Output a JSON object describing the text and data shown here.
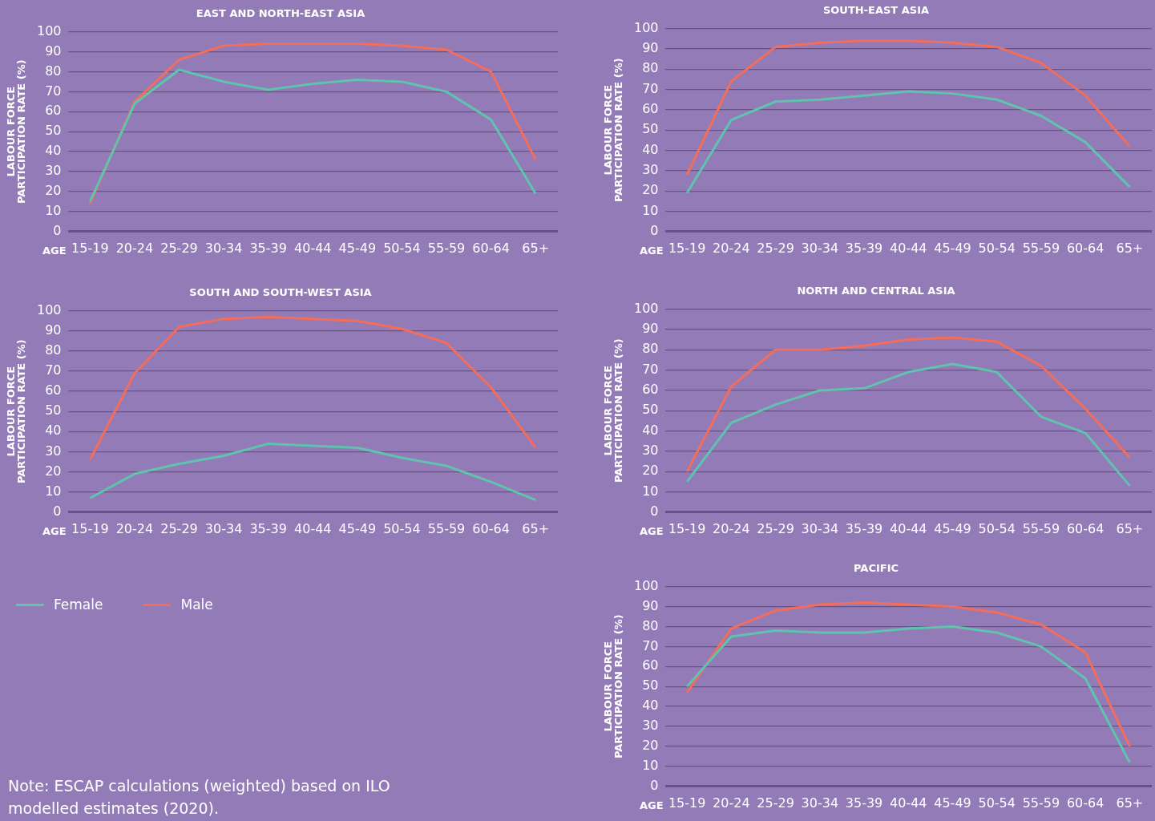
{
  "chart_data": [
    {
      "type": "line",
      "title": "EAST AND NORTH-EAST ASIA",
      "xlabel": "AGE",
      "ylabel": "LABOUR FORCE PARTICIPATION RATE (%)",
      "categories": [
        "15-19",
        "20-24",
        "25-29",
        "30-34",
        "35-39",
        "40-44",
        "45-49",
        "50-54",
        "55-59",
        "60-64",
        "65+"
      ],
      "ylim": [
        0,
        100
      ],
      "yticks": [
        0,
        10,
        20,
        30,
        40,
        50,
        60,
        70,
        80,
        90,
        100
      ],
      "grid": "y",
      "legend": "bottom",
      "marker": "none",
      "series": [
        {
          "name": "Female",
          "color": "#5fc3ad",
          "values": [
            15,
            64,
            81,
            75,
            71,
            74,
            76,
            75,
            70,
            56,
            19
          ]
        },
        {
          "name": "Male",
          "color": "#f26d5b",
          "values": [
            14,
            65,
            86,
            93,
            94,
            94,
            94,
            93,
            91,
            80,
            36
          ]
        }
      ]
    },
    {
      "type": "line",
      "title": "SOUTH-EAST ASIA",
      "xlabel": "AGE",
      "ylabel": "LABOUR FORCE PARTICIPATION RATE (%)",
      "categories": [
        "15-19",
        "20-24",
        "25-29",
        "30-34",
        "35-39",
        "40-44",
        "45-49",
        "50-54",
        "55-59",
        "60-64",
        "65+"
      ],
      "ylim": [
        0,
        100
      ],
      "yticks": [
        0,
        10,
        20,
        30,
        40,
        50,
        60,
        70,
        80,
        90,
        100
      ],
      "grid": "y",
      "marker": "none",
      "series": [
        {
          "color": "#5fc3ad",
          "values": [
            19,
            55,
            64,
            65,
            67,
            69,
            68,
            65,
            57,
            44,
            22
          ]
        },
        {
          "color": "#f26d5b",
          "values": [
            28,
            74,
            91,
            93,
            94,
            94,
            93,
            91,
            83,
            67,
            42
          ]
        }
      ]
    },
    {
      "type": "line",
      "title": "SOUTH AND SOUTH-WEST ASIA",
      "xlabel": "AGE",
      "ylabel": "LABOUR FORCE PARTICIPATION RATE (%)",
      "categories": [
        "15-19",
        "20-24",
        "25-29",
        "30-34",
        "35-39",
        "40-44",
        "45-49",
        "50-54",
        "55-59",
        "60-64",
        "65+"
      ],
      "ylim": [
        0,
        100
      ],
      "yticks": [
        0,
        10,
        20,
        30,
        40,
        50,
        60,
        70,
        80,
        90,
        100
      ],
      "grid": "y",
      "marker": "none",
      "annotations": [
        "Note: ESCAP calculations (weighted) based on ILO modelled estimates (2020)."
      ],
      "series": [
        {
          "color": "#5fc3ad",
          "values": [
            7,
            19,
            24,
            28,
            34,
            33,
            32,
            27,
            23,
            15,
            6
          ]
        },
        {
          "color": "#f26d5b",
          "values": [
            26,
            69,
            92,
            96,
            97,
            96,
            95,
            91,
            84,
            62,
            32
          ]
        }
      ]
    },
    {
      "type": "line",
      "title": "NORTH AND CENTRAL ASIA",
      "xlabel": "AGE",
      "ylabel": "LABOUR FORCE PARTICIPATION RATE (%)",
      "categories": [
        "15-19",
        "20-24",
        "25-29",
        "30-34",
        "35-39",
        "40-44",
        "45-49",
        "50-54",
        "55-59",
        "60-64",
        "65+"
      ],
      "ylim": [
        0,
        100
      ],
      "yticks": [
        0,
        10,
        20,
        30,
        40,
        50,
        60,
        70,
        80,
        90,
        100
      ],
      "grid": "y",
      "marker": "none",
      "series": [
        {
          "color": "#5fc3ad",
          "values": [
            15,
            44,
            53,
            60,
            61,
            69,
            73,
            69,
            47,
            39,
            13
          ]
        },
        {
          "color": "#f26d5b",
          "values": [
            20,
            62,
            80,
            80,
            82,
            85,
            86,
            84,
            72,
            51,
            27
          ]
        }
      ]
    },
    {
      "type": "line",
      "title": "PACIFIC",
      "xlabel": "AGE",
      "ylabel": "LABOUR FORCE PARTICIPATION RATE (%)",
      "categories": [
        "15-19",
        "20-24",
        "25-29",
        "30-34",
        "35-39",
        "40-44",
        "45-49",
        "50-54",
        "55-59",
        "60-64",
        "65+"
      ],
      "ylim": [
        0,
        100
      ],
      "yticks": [
        0,
        10,
        20,
        30,
        40,
        50,
        60,
        70,
        80,
        90,
        100
      ],
      "grid": "y",
      "marker": "none",
      "series": [
        {
          "color": "#5fc3ad",
          "values": [
            50,
            75,
            78,
            77,
            77,
            79,
            80,
            77,
            70,
            54,
            12
          ]
        },
        {
          "color": "#f26d5b",
          "values": [
            47,
            79,
            88,
            91,
            92,
            91,
            90,
            87,
            81,
            67,
            20
          ]
        }
      ]
    }
  ]
}
